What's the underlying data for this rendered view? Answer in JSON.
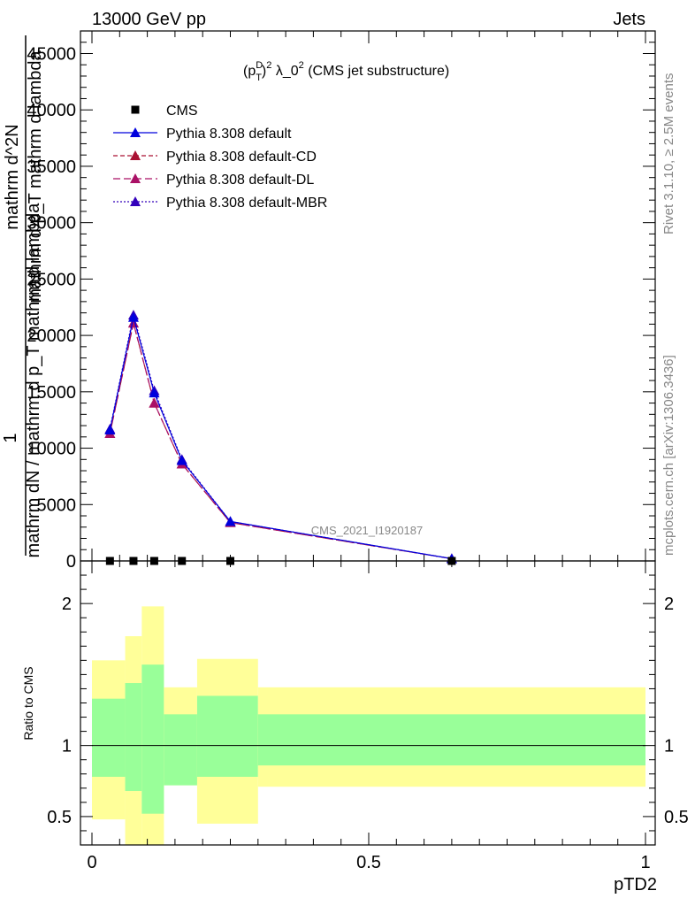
{
  "header": {
    "left": "13000 GeV pp",
    "right": "Jets"
  },
  "main_title": "(p_T^D)^2 λ_0^2 (CMS jet substructure)",
  "title_parts": {
    "open": "(p",
    "sup_d": "D",
    "sub_t": "T",
    "close": ")",
    "sup_2a": "2",
    "lambda": " λ_0",
    "sup_2b": "2",
    "tail": " (CMS jet substructure)"
  },
  "watermark": "CMS_2021_I1920187",
  "side_text_top": "Rivet 3.1.10, ≥ 2.5M events",
  "side_text_bottom": "mcplots.cern.ch [arXiv:1306.3436]",
  "ylabel_lines": [
    "1",
    "mathrm dN / mathrm d p_T mathrm d lambda",
    "mathrm d^2N",
    "mathrm d p_T mathrm d lambda"
  ],
  "ratio_ylabel": "Ratio to CMS",
  "xlabel": "pTD2",
  "colors": {
    "data": "#000000",
    "default": "#0000dd",
    "cd": "#aa1133",
    "dl": "#aa1166",
    "mbr": "#3300bb",
    "band_outer": "#ffff99",
    "band_inner": "#99ff99",
    "watermark": "#888888",
    "side_text": "#888888"
  },
  "chart_data": {
    "type": "line",
    "xlim": [
      0,
      1
    ],
    "ylim": [
      0,
      47000
    ],
    "x_ticks": [
      "0",
      "0.5",
      "1"
    ],
    "y_ticks": [
      "0",
      "5000",
      "10000",
      "15000",
      "20000",
      "25000",
      "30000",
      "35000",
      "40000",
      "45000"
    ],
    "x": [
      0.0325,
      0.075,
      0.1125,
      0.1625,
      0.25,
      0.65
    ],
    "series": [
      {
        "name": "CMS",
        "marker": "square",
        "values": [
          0,
          0,
          0,
          0,
          0,
          0
        ]
      },
      {
        "name": "Pythia 8.308 default",
        "marker": "triangle",
        "values": [
          11600,
          21600,
          14900,
          8900,
          3500,
          200
        ]
      },
      {
        "name": "Pythia 8.308 default-CD",
        "marker": "triangle",
        "values": [
          11300,
          21100,
          14000,
          8600,
          3400,
          200
        ]
      },
      {
        "name": "Pythia 8.308 default-DL",
        "marker": "triangle",
        "values": [
          11300,
          21100,
          14000,
          8600,
          3400,
          200
        ]
      },
      {
        "name": "Pythia 8.308 default-MBR",
        "marker": "triangle",
        "values": [
          11700,
          21800,
          15100,
          9000,
          3500,
          200
        ]
      }
    ],
    "ratio": {
      "ylim": [
        0.3,
        2.3
      ],
      "y_ticks": [
        "0.5",
        "1",
        "2"
      ],
      "bands": [
        {
          "x0": 0.0,
          "x1": 0.06,
          "outer": [
            0.48,
            1.6
          ],
          "inner": [
            0.78,
            1.33
          ]
        },
        {
          "x0": 0.06,
          "x1": 0.09,
          "outer": [
            0.3,
            1.77
          ],
          "inner": [
            0.68,
            1.44
          ]
        },
        {
          "x0": 0.09,
          "x1": 0.13,
          "outer": [
            0.3,
            1.98
          ],
          "inner": [
            0.52,
            1.57
          ]
        },
        {
          "x0": 0.13,
          "x1": 0.19,
          "outer": [
            0.72,
            1.41
          ],
          "inner": [
            0.72,
            1.22
          ]
        },
        {
          "x0": 0.19,
          "x1": 0.3,
          "outer": [
            0.45,
            1.61
          ],
          "inner": [
            0.78,
            1.35
          ]
        },
        {
          "x0": 0.3,
          "x1": 1.0,
          "outer": [
            0.71,
            1.41
          ],
          "inner": [
            0.86,
            1.22
          ]
        }
      ]
    }
  }
}
